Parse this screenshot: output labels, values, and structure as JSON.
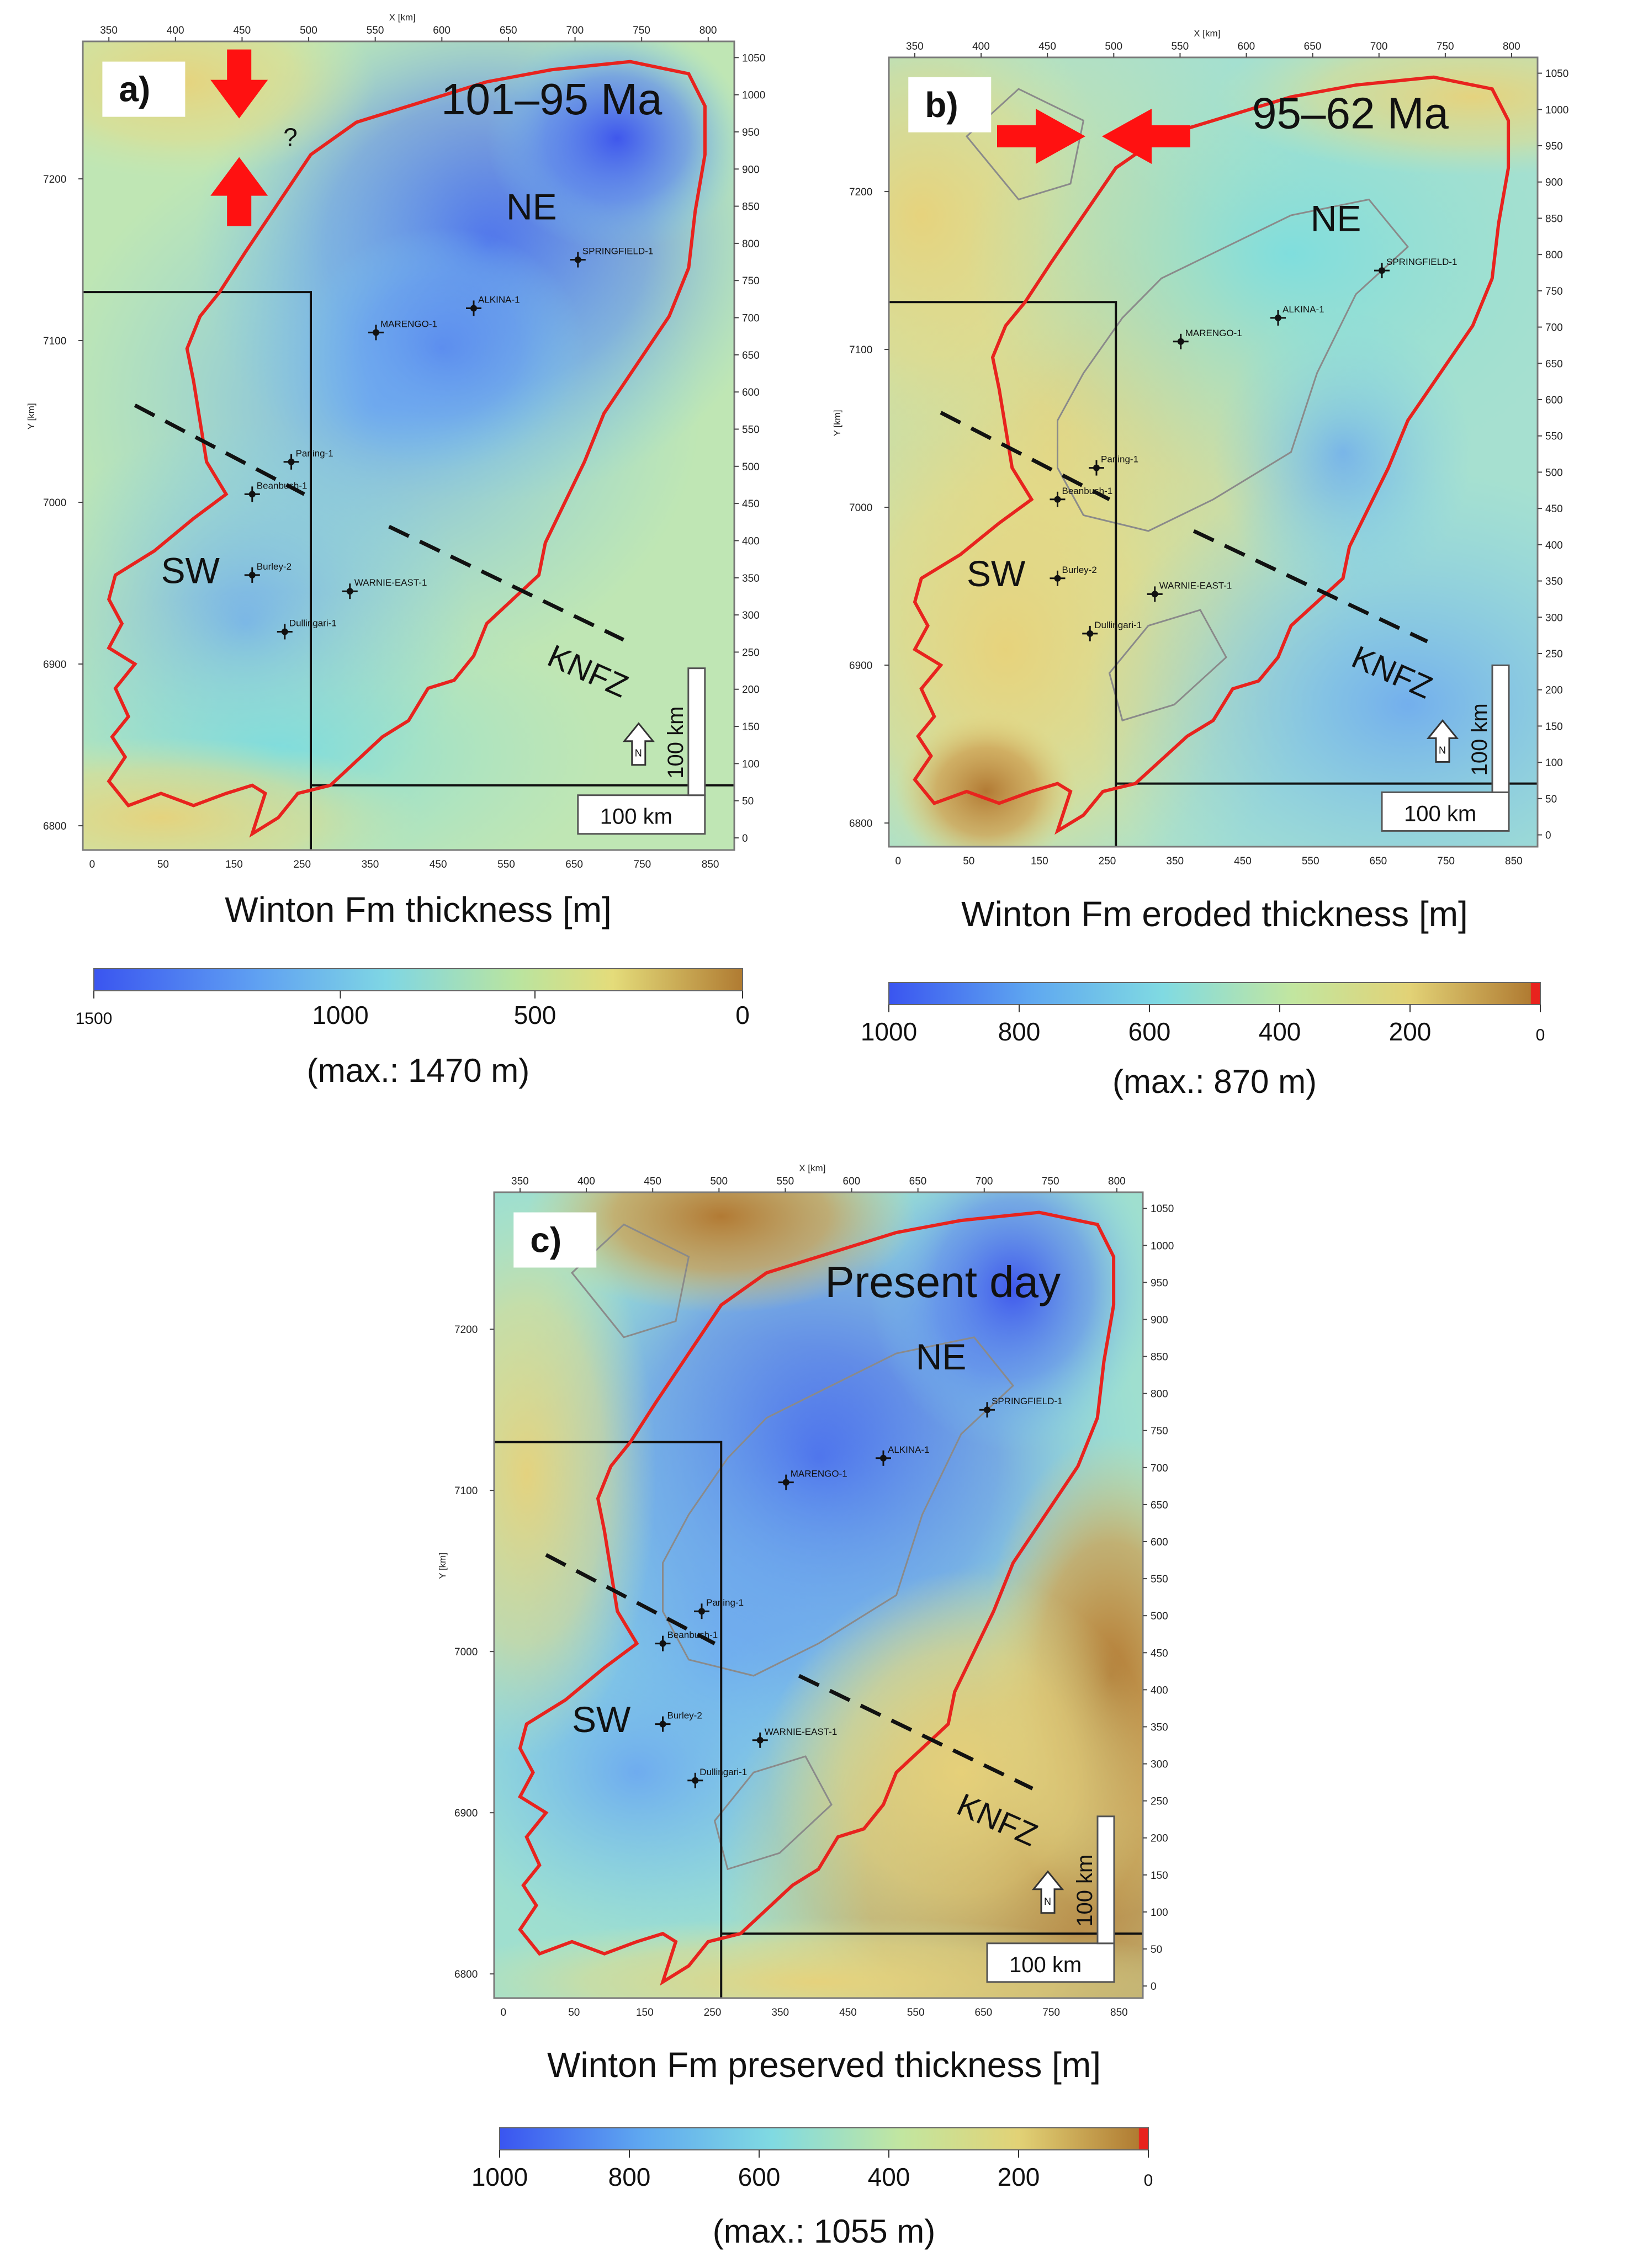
{
  "panels": [
    {
      "id": "a",
      "label": "a)",
      "period": "101–95 Ma",
      "caption": "Winton Fm thickness [m]",
      "max_note": "(max.: 1470 m)",
      "legend_ticks": [
        "1500",
        "1000",
        "500",
        "0"
      ],
      "stress_mark": "?",
      "region_labels": [
        "NE",
        "SW",
        "KNFZ"
      ],
      "axis_title_x": "X [km]",
      "axis_title_y": "Y [km]",
      "scale_h": "100 km",
      "scale_v": "100 km",
      "north": "N",
      "wells": [
        "SPRINGFIELD-1",
        "ALKINA-1",
        "MARENGO-1",
        "Paning-1",
        "Beanbush-1",
        "Burley-2",
        "WARNIE-EAST-1",
        "Dullingari-1"
      ],
      "x_top_ticks": [
        "350",
        "400",
        "450",
        "500",
        "550",
        "600",
        "650",
        "700",
        "750",
        "800"
      ],
      "x_bottom_ticks": [
        "0",
        "50",
        "150",
        "250",
        "350",
        "450",
        "550",
        "650",
        "750",
        "850"
      ],
      "y_left_ticks": [
        "7200",
        "7100",
        "7000",
        "6900",
        "6800"
      ],
      "y_right_ticks": [
        "1050",
        "1000",
        "950",
        "900",
        "850",
        "800",
        "750",
        "700",
        "650",
        "600",
        "550",
        "500",
        "450",
        "400",
        "350",
        "300",
        "250",
        "200",
        "150",
        "100",
        "50",
        "0"
      ]
    },
    {
      "id": "b",
      "label": "b)",
      "period": "95–62 Ma",
      "caption": "Winton Fm eroded thickness [m]",
      "max_note": "(max.: 870 m)",
      "legend_ticks": [
        "1000",
        "800",
        "600",
        "400",
        "200",
        "0"
      ],
      "region_labels": [
        "NE",
        "SW",
        "KNFZ"
      ],
      "axis_title_x": "X [km]",
      "axis_title_y": "Y [km]",
      "scale_h": "100 km",
      "scale_v": "100 km",
      "north": "N",
      "wells": [
        "SPRINGFIELD-1",
        "ALKINA-1",
        "MARENGO-1",
        "Paning-1",
        "Beanbush-1",
        "Burley-2",
        "WARNIE-EAST-1",
        "Dullingari-1"
      ],
      "x_top_ticks": [
        "350",
        "400",
        "450",
        "500",
        "550",
        "600",
        "650",
        "700",
        "750",
        "800"
      ],
      "x_bottom_ticks": [
        "0",
        "50",
        "150",
        "250",
        "350",
        "450",
        "550",
        "650",
        "750",
        "850"
      ],
      "y_left_ticks": [
        "7200",
        "7100",
        "7000",
        "6900",
        "6800"
      ],
      "y_right_ticks": [
        "1050",
        "1000",
        "950",
        "900",
        "850",
        "800",
        "750",
        "700",
        "650",
        "600",
        "550",
        "500",
        "450",
        "400",
        "350",
        "300",
        "250",
        "200",
        "150",
        "100",
        "50",
        "0"
      ]
    },
    {
      "id": "c",
      "label": "c)",
      "period": "Present day",
      "caption": "Winton Fm preserved thickness [m]",
      "max_note": "(max.: 1055 m)",
      "legend_ticks": [
        "1000",
        "800",
        "600",
        "400",
        "200",
        "0"
      ],
      "region_labels": [
        "NE",
        "SW",
        "KNFZ"
      ],
      "axis_title_x": "X [km]",
      "axis_title_y": "Y [km]",
      "scale_h": "100 km",
      "scale_v": "100 km",
      "north": "N",
      "wells": [
        "SPRINGFIELD-1",
        "ALKINA-1",
        "MARENGO-1",
        "Paning-1",
        "Beanbush-1",
        "Burley-2",
        "WARNIE-EAST-1",
        "Dullingari-1"
      ],
      "x_top_ticks": [
        "350",
        "400",
        "450",
        "500",
        "550",
        "600",
        "650",
        "700",
        "750",
        "800"
      ],
      "x_bottom_ticks": [
        "0",
        "50",
        "150",
        "250",
        "350",
        "450",
        "550",
        "650",
        "750",
        "850"
      ],
      "y_left_ticks": [
        "7200",
        "7100",
        "7000",
        "6900",
        "6800"
      ],
      "y_right_ticks": [
        "1050",
        "1000",
        "950",
        "900",
        "850",
        "800",
        "750",
        "700",
        "650",
        "600",
        "550",
        "500",
        "450",
        "400",
        "350",
        "300",
        "250",
        "200",
        "150",
        "100",
        "50",
        "0"
      ]
    }
  ],
  "colors": {
    "blue": "#3a5cf0",
    "cyan": "#7ed8e6",
    "yellow": "#e6dc7c",
    "brown": "#b07b32",
    "boundary": "#e8231e",
    "arrow": "#ff1111"
  }
}
